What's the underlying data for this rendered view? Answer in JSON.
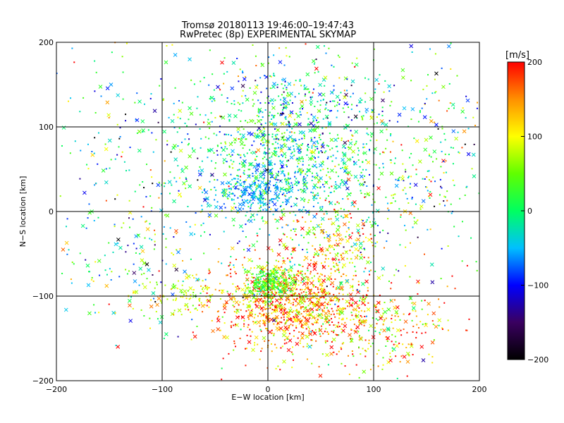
{
  "chart_data": {
    "type": "scatter",
    "title": "Tromsø 20180113 19:46:00–19:47:43",
    "subtitle": "RwPretec (8p) EXPERIMENTAL SKYMAP",
    "xlabel": "E−W location [km]",
    "ylabel": "N−S location [km]",
    "xlim": [
      -200,
      200
    ],
    "ylim": [
      -200,
      200
    ],
    "xticks": [
      -200,
      -100,
      0,
      100,
      200
    ],
    "yticks": [
      -200,
      -100,
      0,
      100,
      200
    ],
    "x_tick_labels": [
      "−200",
      "−100",
      "0",
      "100",
      "200"
    ],
    "y_tick_labels": [
      "−200",
      "−100",
      "0",
      "100",
      "200"
    ],
    "grid": true,
    "colorbar": {
      "label": "[m/s]",
      "range": [
        -200,
        200
      ],
      "ticks": [
        200,
        100,
        0,
        -100,
        -200
      ],
      "tick_labels": [
        "200",
        "100",
        "0",
        "−100",
        "−200"
      ],
      "colormap": [
        "#000000",
        "#3a0060",
        "#0000ff",
        "#00c0ff",
        "#00ff60",
        "#60ff00",
        "#ffff00",
        "#ff9000",
        "#ff0000"
      ]
    },
    "markers": [
      "dot",
      "cross"
    ],
    "clusters": [
      {
        "center": [
          20,
          60
        ],
        "spread": [
          50,
          45
        ],
        "count": 900,
        "velocity_mean": 0,
        "velocity_sd": 50
      },
      {
        "center": [
          -5,
          25
        ],
        "spread": [
          25,
          15
        ],
        "count": 250,
        "velocity_mean": -60,
        "velocity_sd": 20
      },
      {
        "center": [
          35,
          130
        ],
        "spread": [
          40,
          30
        ],
        "count": 220,
        "velocity_mean": -30,
        "velocity_sd": 70
      },
      {
        "center": [
          15,
          -110
        ],
        "spread": [
          35,
          25
        ],
        "count": 800,
        "velocity_mean": 150,
        "velocity_sd": 55
      },
      {
        "center": [
          5,
          -85
        ],
        "spread": [
          12,
          10
        ],
        "count": 300,
        "velocity_mean": 40,
        "velocity_sd": 40
      },
      {
        "center": [
          90,
          -135
        ],
        "spread": [
          45,
          25
        ],
        "count": 350,
        "velocity_mean": 130,
        "velocity_sd": 70
      },
      {
        "center": [
          -75,
          -100
        ],
        "spread": [
          25,
          10
        ],
        "count": 100,
        "velocity_mean": 90,
        "velocity_sd": 30
      },
      {
        "center": [
          -120,
          -60
        ],
        "spread": [
          50,
          40
        ],
        "count": 150,
        "velocity_mean": 0,
        "velocity_sd": 90
      },
      {
        "center": [
          140,
          60
        ],
        "spread": [
          50,
          60
        ],
        "count": 280,
        "velocity_mean": 30,
        "velocity_sd": 90
      },
      {
        "center": [
          -110,
          80
        ],
        "spread": [
          60,
          70
        ],
        "count": 200,
        "velocity_mean": -30,
        "velocity_sd": 90
      },
      {
        "center": [
          60,
          -50
        ],
        "spread": [
          25,
          30
        ],
        "count": 250,
        "velocity_mean": 120,
        "velocity_sd": 60
      },
      {
        "center": [
          0,
          0
        ],
        "spread": [
          160,
          160
        ],
        "count": 350,
        "velocity_mean": 40,
        "velocity_sd": 110
      }
    ]
  }
}
